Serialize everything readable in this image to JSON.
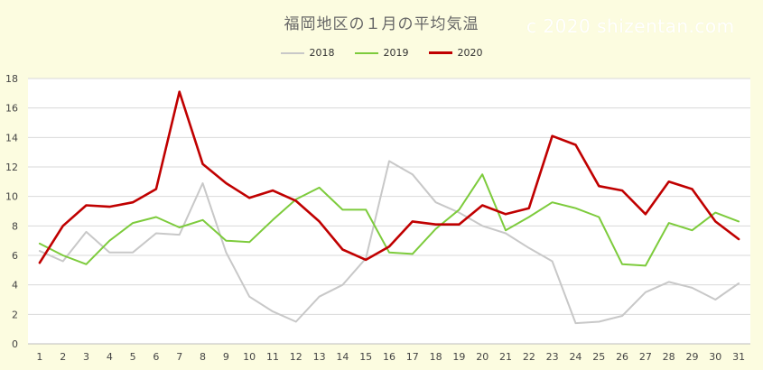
{
  "title": "福岡地区の１月の平均気温",
  "watermark": "c 2020 shizentan.com",
  "chart_data": {
    "type": "line",
    "x": [
      1,
      2,
      3,
      4,
      5,
      6,
      7,
      8,
      9,
      10,
      11,
      12,
      13,
      14,
      15,
      16,
      17,
      18,
      19,
      20,
      21,
      22,
      23,
      24,
      25,
      26,
      27,
      28,
      29,
      30,
      31
    ],
    "ylim": [
      0,
      18
    ],
    "yticks": [
      0,
      2,
      4,
      6,
      8,
      10,
      12,
      14,
      16,
      18
    ],
    "grid": true,
    "legend_position": "top-center",
    "series": [
      {
        "name": "2018",
        "color": "#c8c8c8",
        "width": 2,
        "values": [
          6.3,
          5.6,
          7.6,
          6.2,
          6.2,
          7.5,
          7.4,
          10.9,
          6.2,
          3.2,
          2.2,
          1.5,
          3.2,
          4.0,
          5.8,
          12.4,
          11.5,
          9.6,
          8.9,
          8.0,
          7.5,
          6.5,
          5.6,
          1.4,
          1.5,
          1.9,
          3.5,
          4.2,
          3.8,
          3.0,
          4.1
        ]
      },
      {
        "name": "2019",
        "color": "#7dcb3c",
        "width": 2,
        "values": [
          6.8,
          6.0,
          5.4,
          7.0,
          8.2,
          8.6,
          7.9,
          8.4,
          7.0,
          6.9,
          8.4,
          9.8,
          10.6,
          9.1,
          9.1,
          6.2,
          6.1,
          7.8,
          9.1,
          11.5,
          7.7,
          8.6,
          9.6,
          9.2,
          8.6,
          5.4,
          5.3,
          8.2,
          7.7,
          8.9,
          8.3
        ]
      },
      {
        "name": "2020",
        "color": "#c00000",
        "width": 2.6,
        "values": [
          5.5,
          8.0,
          9.4,
          9.3,
          9.6,
          10.5,
          17.1,
          12.2,
          10.9,
          9.9,
          10.4,
          9.7,
          8.3,
          6.4,
          5.7,
          6.6,
          8.3,
          8.1,
          8.1,
          9.4,
          8.8,
          9.2,
          14.1,
          13.5,
          10.7,
          10.4,
          8.8,
          11.0,
          10.5,
          8.3,
          7.1
        ]
      }
    ]
  }
}
